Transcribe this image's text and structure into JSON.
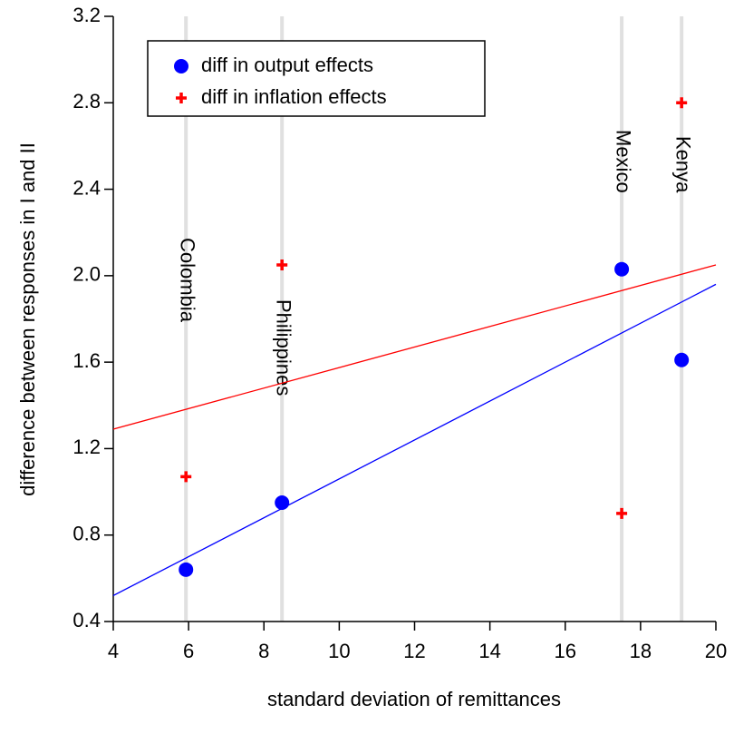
{
  "chart_data": {
    "type": "scatter",
    "x_label": "standard deviation of remittances",
    "y_label": "difference between responses in I and II",
    "x": [
      5.93,
      8.48,
      17.5,
      19.09
    ],
    "point_labels": [
      "Colombia",
      "Philippines",
      "Mexico",
      "Kenya"
    ],
    "series": [
      {
        "name": "diff in output effects",
        "color": "#0000ff",
        "marker": "circle",
        "values": [
          0.64,
          0.95,
          2.03,
          1.61
        ]
      },
      {
        "name": "diff in inflation effects",
        "color": "#ff0000",
        "marker": "plus",
        "values": [
          1.07,
          2.05,
          0.9,
          2.8
        ]
      }
    ],
    "fit_lines": [
      {
        "color": "#0000ff",
        "x": [
          4,
          20
        ],
        "values": [
          0.52,
          1.96
        ]
      },
      {
        "color": "#ff0000",
        "x": [
          4,
          20
        ],
        "values": [
          1.29,
          2.05
        ]
      }
    ],
    "guide_color": "#e0e0e0",
    "xlim": [
      4,
      20
    ],
    "xticks": [
      4,
      6,
      8,
      10,
      12,
      14,
      16,
      18,
      20
    ],
    "ylim": [
      0.4,
      3.2
    ],
    "yticks": [
      0.4,
      {
        "value": 0.8,
        "label": "0.8"
      },
      {
        "value": 1.2,
        "label": "1.2"
      },
      {
        "value": 1.6,
        "label": "1.6"
      },
      {
        "value": 2.0,
        "label": "2.0"
      },
      {
        "value": 2.4,
        "label": "2.4"
      },
      {
        "value": 2.8,
        "label": "2.8"
      },
      {
        "value": 3.2,
        "label": "3.2"
      }
    ],
    "legend": "top-left"
  }
}
